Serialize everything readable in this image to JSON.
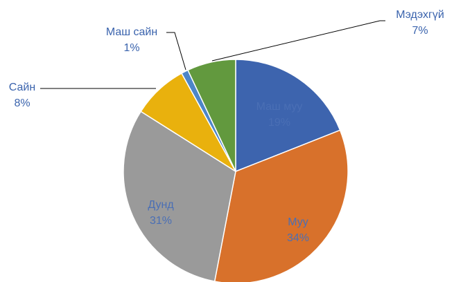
{
  "chart_data": {
    "type": "pie",
    "categories": [
      "Маш муу",
      "Муу",
      "Дунд",
      "Сайн",
      "Маш сайн",
      "Мэдэхгүй"
    ],
    "values": [
      19,
      34,
      31,
      8,
      1,
      7
    ],
    "value_labels": [
      "19%",
      "34%",
      "31%",
      "8%",
      "1%",
      "7%"
    ],
    "colors": [
      "#3d64ae",
      "#d8712b",
      "#9a9a9a",
      "#e9b10d",
      "#4d86c8",
      "#62993e"
    ]
  }
}
